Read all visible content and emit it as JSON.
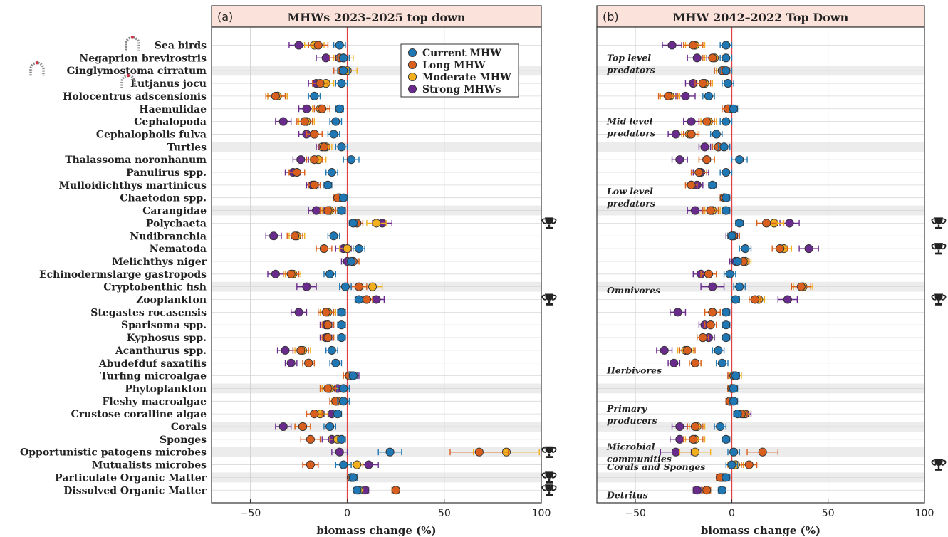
{
  "colors": {
    "current": "#1f77b4",
    "long": "#d95f1f",
    "moderate": "#f2b01e",
    "strong": "#6a2c8c",
    "zero_line": "#e04040",
    "title_bg": "#fbe3dc",
    "icon": "#222222",
    "arch": "#8a8a8a",
    "arch_dot": "#cc3344"
  },
  "chart_data": [
    {
      "type": "scatter",
      "panel_letter": "(a)",
      "title": "MHWs 2023–2025 top down",
      "xlabel": "biomass change (%)",
      "xlim": [
        -70,
        100
      ],
      "xticks": [
        -50,
        0,
        50,
        100
      ],
      "xtick_labels": [
        "−50",
        "0",
        "50",
        "100"
      ],
      "legend": {
        "placement": "top-right",
        "entries": [
          "Current MHW",
          "Long MHW",
          "Moderate MHW",
          "Strong MHWs"
        ]
      },
      "categories": [
        "Sea birds",
        "Negaprion brevirostris",
        "Ginglymostoma cirratum",
        "Lutjanus jocu",
        "Holocentrus adscensionis",
        "Haemulidae",
        "Cephalopoda",
        "Cephalopholis fulva",
        "Turtles",
        "Thalassoma noronhanum",
        "Panulirus spp.",
        "Mulloidichthys martinicus",
        "Chaetodon spp.",
        "Carangidae",
        "Polychaeta",
        "Nudibranchia",
        "Nematoda",
        "Melichthys niger",
        "Echinoderms large gastropods",
        "Cryptobenthic fish",
        "Zooplankton",
        "Stegastes rocasensis",
        "Sparisoma spp.",
        "Kyphosus spp.",
        "Acanthurus spp.",
        "Abudefduf saxatilis",
        "Turfing microalgae",
        "Phytoplankton",
        "Fleshy macroalgae",
        "Crustose coralline algae",
        "Corals",
        "Sponges",
        "Opportunistic patogens microbes",
        "Mutualists microbes",
        "Particulate Organic Matter",
        "Dissolved Organic Matter"
      ],
      "category_display": [
        "Sea birds",
        "Negaprion brevirostris",
        "Ginglymostoma cirratum",
        "Lutjanus jocu",
        "Holocentrus adscensionis",
        "Haemulidae",
        "Cephalopoda",
        "Cephalopholis fulva",
        "Turtles",
        "Thalassoma noronhanum",
        "Panulirus spp.",
        "Mulloidichthys martinicus",
        "Chaetodon spp.",
        "Carangidae",
        "Polychaeta",
        "Nudibranchia",
        "Nematoda",
        "Melichthys niger",
        "Echinodermslarge gastropods",
        "Cryptobenthic fish",
        "Zooplankton",
        "Stegastes rocasensis",
        "Sparisoma spp.",
        "Kyphosus spp.",
        "Acanthurus spp.",
        "Abudefduf saxatilis",
        "Turfing microalgae",
        "Phytoplankton",
        "Fleshy macroalgae",
        "Crustose coralline algae",
        "Corals",
        "Sponges",
        "Opportunistic patogens microbes",
        "Mutualists microbes",
        "Particulate Organic Matter",
        "Dissolved Organic Matter"
      ],
      "series": [
        {
          "name": "Current MHW",
          "values": [
            -4,
            -2,
            -2,
            -3,
            -17,
            -4,
            -6,
            -7,
            -3,
            2,
            -8,
            -10,
            -2,
            -3,
            3,
            -7,
            6,
            2,
            -9,
            -1,
            6,
            -3,
            -3,
            -3,
            -8,
            -6,
            3,
            -2,
            -2,
            -5,
            -9,
            -3,
            22,
            -2,
            3,
            5
          ],
          "err": [
            3,
            3,
            3,
            3,
            3,
            2,
            3,
            3,
            3,
            4,
            3,
            2,
            2,
            2,
            2,
            3,
            3,
            2,
            3,
            3,
            2,
            2,
            2,
            2,
            3,
            3,
            2,
            3,
            3,
            2,
            3,
            2,
            6,
            4,
            2,
            2
          ]
        },
        {
          "name": "Long MHW",
          "values": [
            -15,
            -4,
            -3,
            -14,
            -37,
            -13,
            -22,
            -17,
            -12,
            -17,
            -26,
            -17,
            -5,
            -10,
            5,
            -27,
            -12,
            3,
            -29,
            6,
            10,
            -11,
            -10,
            -10,
            -24,
            -20,
            1,
            -10,
            -6,
            -17,
            -23,
            -19,
            68,
            -19,
            2,
            25
          ],
          "err": [
            5,
            5,
            4,
            4,
            5,
            4,
            4,
            4,
            3,
            4,
            4,
            3,
            2,
            4,
            3,
            4,
            4,
            3,
            4,
            4,
            3,
            4,
            3,
            3,
            4,
            3,
            3,
            4,
            3,
            4,
            4,
            5,
            15,
            4,
            2,
            2
          ]
        },
        {
          "name": "Moderate MHW",
          "values": [
            -17,
            -2,
            0,
            -11,
            -36,
            -14,
            -21,
            -17,
            -11,
            -15,
            -26,
            -17,
            -4,
            -9,
            15,
            -26,
            0,
            3,
            -28,
            13,
            10,
            -10,
            -10,
            -10,
            -23,
            -20,
            2,
            -9,
            -5,
            -14,
            -23,
            -5,
            82,
            5,
            3,
            6
          ],
          "err": [
            5,
            5,
            5,
            4,
            5,
            4,
            4,
            4,
            3,
            4,
            4,
            3,
            2,
            4,
            5,
            4,
            4,
            3,
            4,
            5,
            3,
            4,
            3,
            3,
            4,
            3,
            3,
            4,
            3,
            4,
            4,
            4,
            17,
            3,
            2,
            2
          ]
        },
        {
          "name": "Strong MHWs",
          "values": [
            -25,
            -11,
            -3,
            -16,
            -36,
            -21,
            -33,
            -21,
            -13,
            -24,
            -28,
            -18,
            -4,
            -16,
            18,
            -38,
            -2,
            0,
            -37,
            -21,
            15,
            -25,
            -11,
            -11,
            -32,
            -29,
            3,
            -5,
            -6,
            -8,
            -33,
            -8,
            -4,
            11,
            2,
            9
          ],
          "err": [
            5,
            5,
            4,
            4,
            5,
            4,
            4,
            4,
            3,
            4,
            4,
            3,
            2,
            4,
            5,
            4,
            4,
            3,
            4,
            5,
            4,
            4,
            3,
            3,
            4,
            3,
            3,
            4,
            3,
            4,
            4,
            5,
            4,
            5,
            2,
            2
          ]
        }
      ],
      "arch_icon_categories": [
        "Sea birds",
        "Ginglymostoma cirratum",
        "Lutjanus jocu"
      ],
      "trophy_categories": [
        "Polychaeta",
        "Zooplankton",
        "Opportunistic patogens microbes",
        "Particulate Organic Matter",
        "Dissolved Organic Matter"
      ],
      "shaded_rows": [
        "Ginglymostoma cirratum",
        "Turtles",
        "Carangidae",
        "Cryptobenthic fish",
        "Phytoplankton",
        "Corals",
        "Opportunistic patogens microbes",
        "Particulate Organic Matter"
      ]
    },
    {
      "type": "scatter",
      "panel_letter": "(b)",
      "title": "MHW 2042–2022 Top Down",
      "xlabel": "biomass change (%)",
      "xlim": [
        -70,
        100
      ],
      "xticks": [
        -50,
        0,
        50,
        100
      ],
      "xtick_labels": [
        "−50",
        "0",
        "50",
        "100"
      ],
      "group_labels": [
        {
          "text": [
            "Top level",
            "predators"
          ],
          "row": 1
        },
        {
          "text": [
            "Mid level",
            "predators"
          ],
          "row": 6
        },
        {
          "text": [
            "Low level",
            "predators"
          ],
          "row": 11.5
        },
        {
          "text": [
            "Omnivores"
          ],
          "row": 19.3
        },
        {
          "text": [
            "Herbivores"
          ],
          "row": 25.6
        },
        {
          "text": [
            "Primary",
            "producers"
          ],
          "row": 28.6
        },
        {
          "text": [
            "Microbial",
            "communities"
          ],
          "row": 31.6
        },
        {
          "text": [
            "Corals and Sponges"
          ],
          "row": 33.2
        },
        {
          "text": [
            "Detritus"
          ],
          "row": 35.4
        }
      ],
      "series": [
        {
          "name": "Current MHW",
          "values": [
            -3,
            -3,
            -3,
            -2,
            -12,
            1,
            -3,
            -8,
            -4,
            4,
            -3,
            -10,
            -3,
            -3,
            4,
            0,
            7,
            3,
            -1,
            4,
            2,
            -3,
            -3,
            -3,
            -7,
            -5,
            2,
            1,
            1,
            3,
            -6,
            -3,
            1,
            0,
            -3,
            -5
          ],
          "err": [
            3,
            3,
            3,
            3,
            3,
            2,
            3,
            3,
            3,
            4,
            3,
            2,
            2,
            2,
            2,
            2,
            3,
            2,
            3,
            3,
            2,
            2,
            2,
            2,
            3,
            3,
            2,
            2,
            2,
            2,
            3,
            2,
            3,
            3,
            2,
            2
          ]
        },
        {
          "name": "Long MHW",
          "values": [
            -20,
            -10,
            -5,
            -15,
            -33,
            -2,
            -13,
            -21,
            -7,
            -13,
            -17,
            -21,
            -4,
            -11,
            18,
            1,
            25,
            6,
            -12,
            36,
            12,
            -10,
            -11,
            -15,
            -23,
            -19,
            1,
            0,
            -1,
            5,
            -19,
            -20,
            16,
            9,
            -6,
            -13
          ],
          "err": [
            5,
            5,
            4,
            4,
            5,
            3,
            4,
            4,
            3,
            4,
            4,
            3,
            2,
            4,
            5,
            3,
            4,
            3,
            4,
            5,
            3,
            4,
            3,
            3,
            4,
            3,
            3,
            2,
            2,
            3,
            4,
            5,
            8,
            4,
            2,
            2
          ]
        },
        {
          "name": "Moderate MHW",
          "values": [
            -19,
            -9,
            -4,
            -14,
            -32,
            -2,
            -12,
            -22,
            -7,
            -13,
            -17,
            -21,
            -4,
            -10,
            22,
            1,
            27,
            7,
            -12,
            37,
            14,
            -10,
            -11,
            -15,
            -24,
            -19,
            2,
            0,
            -1,
            6,
            -18,
            -19,
            -19,
            2,
            -5,
            -13
          ],
          "err": [
            5,
            5,
            4,
            4,
            5,
            3,
            4,
            4,
            3,
            4,
            4,
            3,
            2,
            4,
            5,
            3,
            4,
            3,
            4,
            5,
            3,
            4,
            3,
            3,
            4,
            3,
            3,
            2,
            2,
            3,
            4,
            5,
            8,
            4,
            2,
            2
          ]
        },
        {
          "name": "Strong MHWs",
          "values": [
            -31,
            -18,
            -5,
            -20,
            -24,
            -1,
            -21,
            -29,
            -14,
            -27,
            -16,
            -18,
            -4,
            -19,
            30,
            0,
            40,
            2,
            -16,
            -10,
            29,
            -28,
            -14,
            -12,
            -35,
            -30,
            1,
            0,
            -1,
            7,
            -27,
            -27,
            -29,
            2,
            -4,
            -18
          ],
          "err": [
            5,
            5,
            4,
            4,
            5,
            3,
            4,
            4,
            3,
            4,
            4,
            3,
            2,
            4,
            5,
            3,
            5,
            3,
            4,
            6,
            5,
            4,
            3,
            3,
            4,
            3,
            3,
            2,
            2,
            3,
            4,
            5,
            8,
            4,
            2,
            2
          ]
        }
      ],
      "trophy_rows": [
        14,
        16,
        20,
        33
      ]
    }
  ]
}
